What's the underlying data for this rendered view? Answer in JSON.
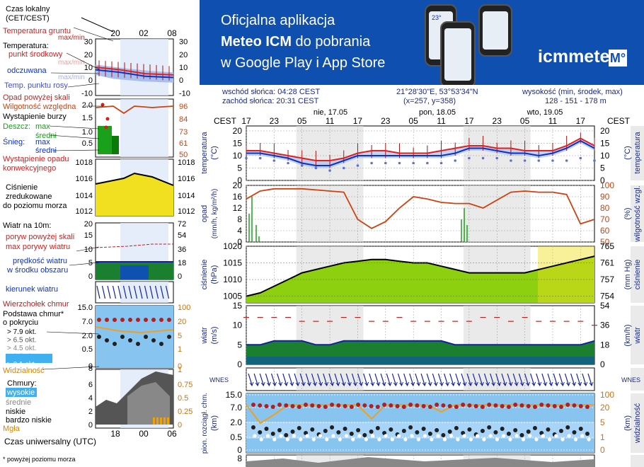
{
  "banner": {
    "line1": "Oficjalna aplikacja",
    "line2_bold": "Meteo ICM",
    "line2_rest": " do pobrania",
    "line3": "w Google Play i App Store",
    "logo": "icmmeteo",
    "logo_badge": "M°",
    "phone_temp": "23°"
  },
  "location": {
    "sunrise": "wschód słońca: 04:28 CEST",
    "sunset": "zachód słońca: 20:31 CEST",
    "coords": "21°28'30\"E, 53°53'34\"N",
    "grid": "(x=257, y=358)",
    "height_label": "wysokość (min, środek, max)",
    "height_values": "128 - 151 - 178 m"
  },
  "legend": {
    "czas_lokalny_1": "Czas lokalny",
    "czas_lokalny_2": "(CET/CEST)",
    "local_ticks": [
      "20",
      "02",
      "08"
    ],
    "temp_gruntu": "Temperatura gruntu",
    "max_min": "max/min",
    "temperatura": "Temperatura:",
    "punkt_srodkowy": "punkt środkowy",
    "max_min2": "max/min",
    "odczuwana": "odczuwana",
    "max_min3": "max/min",
    "temp_rosy": "Temp. punktu rosy",
    "temp_ticks": [
      "30",
      "20",
      "10",
      "0",
      "-10"
    ],
    "opad_pow": "Opad powyżej skali",
    "wilgotnosc": "Wilgotność względna",
    "burza": "Wystąpienie burzy",
    "deszcz": "Deszcz:",
    "max": "max",
    "sredni": "średni",
    "snieg": "Śnieg:",
    "max2": "max",
    "sredni2": "średni",
    "opad_konw_1": "Wystąpienie opadu",
    "opad_konw_2": "konwekcyjnego",
    "precip_ticks_left": [
      "2.0",
      "1.5",
      "1.0",
      "0.5"
    ],
    "precip_ticks_right": [
      "96",
      "84",
      "73",
      "61",
      "50"
    ],
    "pressure_ticks_left": [
      "1018",
      "1016",
      "1014",
      "1012"
    ],
    "pressure_ticks_right": [
      "1018",
      "1016",
      "1014",
      "1012"
    ],
    "cisnienie_1": "Ciśnienie",
    "cisnienie_2": "zredukowane",
    "cisnienie_3": "do poziomu morza",
    "wiatr_na": "Wiatr na 10m:",
    "poryw_pow": "poryw powyżej skali",
    "max_porywy": "max porywy wiatru",
    "predkosc_1": "prędkość wiatru",
    "predkosc_2": "w środku obszaru",
    "wind_ticks_left": [
      "20",
      "15",
      "10",
      "5",
      "0"
    ],
    "wind_ticks_right": [
      "72",
      "54",
      "36",
      "18",
      "0"
    ],
    "kierunek": "kierunek wiatru",
    "wierzcholek": "Wierzchołek chmur",
    "podstawa_1": "Podstawa chmur*",
    "podstawa_2": "o pokryciu",
    "okt": [
      "> 7.9 okt.",
      "> 6.5 okt.",
      "> 4.5 okt.",
      "> 2.5 okt.",
      "> 0.1 okt."
    ],
    "cloudbase_ticks_left": [
      "15.0",
      "7.0",
      "2.0",
      "0.5",
      "0"
    ],
    "cloudbase_ticks_right": [
      "100",
      "20",
      "5",
      "1",
      "0"
    ],
    "widzialnosc": "Widzialność",
    "chmury": "Chmury:",
    "wysokie": "wysokie",
    "srednie": "średnie",
    "niskie": "niskie",
    "bardzo_niskie": "bardzo niskie",
    "mgla": "Mgła",
    "clouds_ticks_left": [
      "8",
      "6",
      "4",
      "2",
      "0"
    ],
    "clouds_ticks_right": [
      "1",
      "0.75",
      "0.5",
      "0.25",
      "0"
    ],
    "utc_ticks": [
      "18",
      "00",
      "06"
    ],
    "czas_uniw": "Czas uniwersalny (UTC)",
    "footnote": "* powyżej poziomu morza"
  },
  "main": {
    "days": [
      "nie, 17.05",
      "pon, 18.05",
      "wto, 19.05"
    ],
    "hours": [
      "17",
      "23",
      "05",
      "11",
      "17",
      "23",
      "05",
      "11",
      "17",
      "23",
      "05",
      "11",
      "17"
    ],
    "cest": "CEST",
    "temp_ticks": [
      "20",
      "15",
      "10",
      "5",
      "0"
    ],
    "temp_label_left": "temperatura",
    "temp_unit": "(°C)",
    "precip_ticks_left": [
      "20",
      "16",
      "12",
      "8",
      "4",
      "0"
    ],
    "precip_ticks_right": [
      "100",
      "90",
      "80",
      "70",
      "60",
      "50"
    ],
    "precip_label_left_1": "opad",
    "precip_label_left_2": "(mm/h, kg/m²/h)",
    "precip_label_right_1": "(%)",
    "precip_label_right_2": "wilgotność wzgl.",
    "pressure_ticks_left": [
      "1020",
      "1015",
      "1010",
      "1005"
    ],
    "pressure_ticks_right": [
      "765",
      "761",
      "757",
      "754"
    ],
    "pressure_label_left_1": "ciśnienie",
    "pressure_label_left_2": "(hPa)",
    "pressure_label_right_1": "(mm Hg)",
    "pressure_label_right_2": "ciśnienie",
    "wind_ticks_left": [
      "15",
      "10",
      "5",
      "0"
    ],
    "wind_ticks_right": [
      "54",
      "36",
      "18",
      "0"
    ],
    "wind_label_left_1": "wiatr",
    "wind_label_left_2": "(m/s)",
    "wind_label_right_1": "(km/h)",
    "wind_label_right_2": "wiatr",
    "compass": "WNES",
    "cloud_ticks_left": [
      "15.0",
      "7.0",
      "2.0",
      "0.5",
      "0"
    ],
    "cloud_ticks_right": [
      "100",
      "20",
      "5",
      "1",
      "0"
    ],
    "cloud_label_left_1": "pion. rozciągł. chm.",
    "cloud_label_left_2": "(km)",
    "cloud_label_right_1": "(km)",
    "cloud_label_right_2": "widzialność",
    "bottom_tick": "8"
  },
  "colors": {
    "red": "#e02020",
    "blue": "#1030c0",
    "humidity": "#d04010",
    "rain": "#1aa01a",
    "pressure_fill": "#8cd010",
    "wind_fill": "#1a8030",
    "cloud_bg": "#88c4f0",
    "visibility": "#f0a020",
    "banner": "#0f4fb0"
  },
  "chart_data": [
    {
      "type": "line",
      "name": "temperature",
      "x": [
        "17",
        "20",
        "23",
        "02",
        "05",
        "08",
        "11",
        "14",
        "17",
        "20",
        "23",
        "02",
        "05",
        "08",
        "11",
        "14",
        "17",
        "20",
        "23",
        "02",
        "05",
        "08",
        "11",
        "14",
        "17",
        "20"
      ],
      "series": [
        {
          "name": "max",
          "values": [
            12,
            12,
            11,
            10,
            9,
            8,
            8,
            9,
            11,
            12,
            12,
            11,
            11,
            11,
            12,
            13,
            14,
            14,
            13,
            13,
            12,
            12,
            12,
            14,
            17,
            14
          ]
        },
        {
          "name": "mean",
          "values": [
            11,
            11,
            10,
            9,
            7,
            6,
            6,
            8,
            10,
            10,
            10,
            10,
            10,
            10,
            10,
            11,
            13,
            13,
            12,
            11,
            11,
            10,
            11,
            13,
            16,
            13
          ]
        },
        {
          "name": "min",
          "values": [
            10,
            10,
            9,
            8,
            6,
            5,
            5,
            7,
            9,
            9,
            9,
            9,
            9,
            9,
            9,
            10,
            12,
            12,
            11,
            10,
            10,
            9,
            10,
            12,
            15,
            12
          ]
        },
        {
          "name": "dew point",
          "values": [
            9,
            9,
            8,
            7,
            6,
            5,
            4,
            5,
            6,
            7,
            7,
            7,
            7,
            7,
            7,
            8,
            9,
            9,
            9,
            8,
            8,
            8,
            8,
            8,
            9,
            8
          ]
        }
      ],
      "ylim": [
        0,
        22
      ]
    },
    {
      "type": "line",
      "name": "humidity",
      "x": [
        "17",
        "20",
        "23",
        "02",
        "05",
        "08",
        "11",
        "14",
        "17",
        "20",
        "23",
        "02",
        "05",
        "08",
        "11",
        "14",
        "17",
        "20",
        "23",
        "02",
        "05",
        "08",
        "11",
        "14",
        "17",
        "20"
      ],
      "series": [
        {
          "name": "humidity",
          "values": [
            88,
            95,
            97,
            97,
            97,
            96,
            95,
            94,
            70,
            62,
            68,
            80,
            90,
            88,
            85,
            84,
            84,
            80,
            87,
            94,
            95,
            94,
            94,
            92,
            66,
            70
          ]
        }
      ],
      "ylim": [
        50,
        100
      ]
    },
    {
      "type": "line",
      "name": "pressure",
      "x": [
        "17",
        "20",
        "23",
        "02",
        "05",
        "08",
        "11",
        "14",
        "17",
        "20",
        "23",
        "02",
        "05",
        "08",
        "11",
        "14",
        "17",
        "20",
        "23",
        "02",
        "05",
        "08",
        "11",
        "14",
        "17",
        "20"
      ],
      "series": [
        {
          "name": "pressure",
          "values": [
            1005,
            1006,
            1008,
            1010,
            1012,
            1013,
            1014,
            1015,
            1015.5,
            1016,
            1016,
            1015.5,
            1015,
            1015,
            1014,
            1013,
            1012,
            1012,
            1012,
            1012,
            1012,
            1013,
            1014,
            1015,
            1016,
            1017
          ]
        }
      ],
      "ylim": [
        1003,
        1020
      ]
    },
    {
      "type": "line",
      "name": "wind",
      "x": [
        "17",
        "20",
        "23",
        "02",
        "05",
        "08",
        "11",
        "14",
        "17",
        "20",
        "23",
        "02",
        "05",
        "08",
        "11",
        "14",
        "17",
        "20",
        "23",
        "02",
        "05",
        "08",
        "11",
        "14",
        "17",
        "20"
      ],
      "series": [
        {
          "name": "speed",
          "values": [
            5,
            5,
            6,
            6,
            6,
            5,
            5,
            6,
            6,
            6,
            6,
            6,
            6,
            6,
            6,
            5,
            5,
            5,
            5,
            5,
            5,
            5,
            5,
            5,
            5,
            6
          ]
        },
        {
          "name": "gust",
          "values": [
            12,
            12,
            12,
            12,
            11,
            11,
            11,
            12,
            12,
            11,
            11,
            12,
            11,
            11,
            11,
            11,
            11,
            12,
            12,
            11,
            12,
            11,
            11,
            11,
            11,
            10
          ]
        }
      ],
      "ylim": [
        0,
        15
      ]
    }
  ]
}
